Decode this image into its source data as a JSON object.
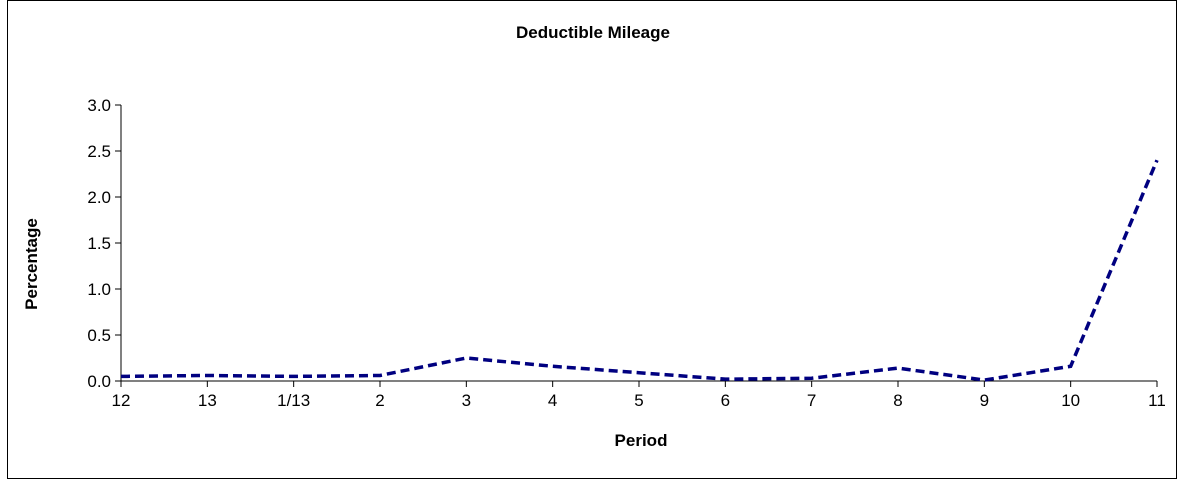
{
  "chart_data": {
    "type": "line",
    "title": "Deductible Mileage",
    "xlabel": "Period",
    "ylabel": "Percentage",
    "categories": [
      "12",
      "13",
      "1/13",
      "2",
      "3",
      "4",
      "5",
      "6",
      "7",
      "8",
      "9",
      "10",
      "11"
    ],
    "series": [
      {
        "values": [
          0.05,
          0.06,
          0.05,
          0.06,
          0.25,
          0.16,
          0.09,
          0.02,
          0.03,
          0.14,
          0.01,
          0.16,
          2.4
        ],
        "color": "#000080",
        "style": "dashed"
      }
    ],
    "ylim": [
      0,
      3.0
    ],
    "yticks": [
      "0.0",
      "0.5",
      "1.0",
      "1.5",
      "2.0",
      "2.5",
      "3.0"
    ],
    "grid": false,
    "legend": "none"
  }
}
